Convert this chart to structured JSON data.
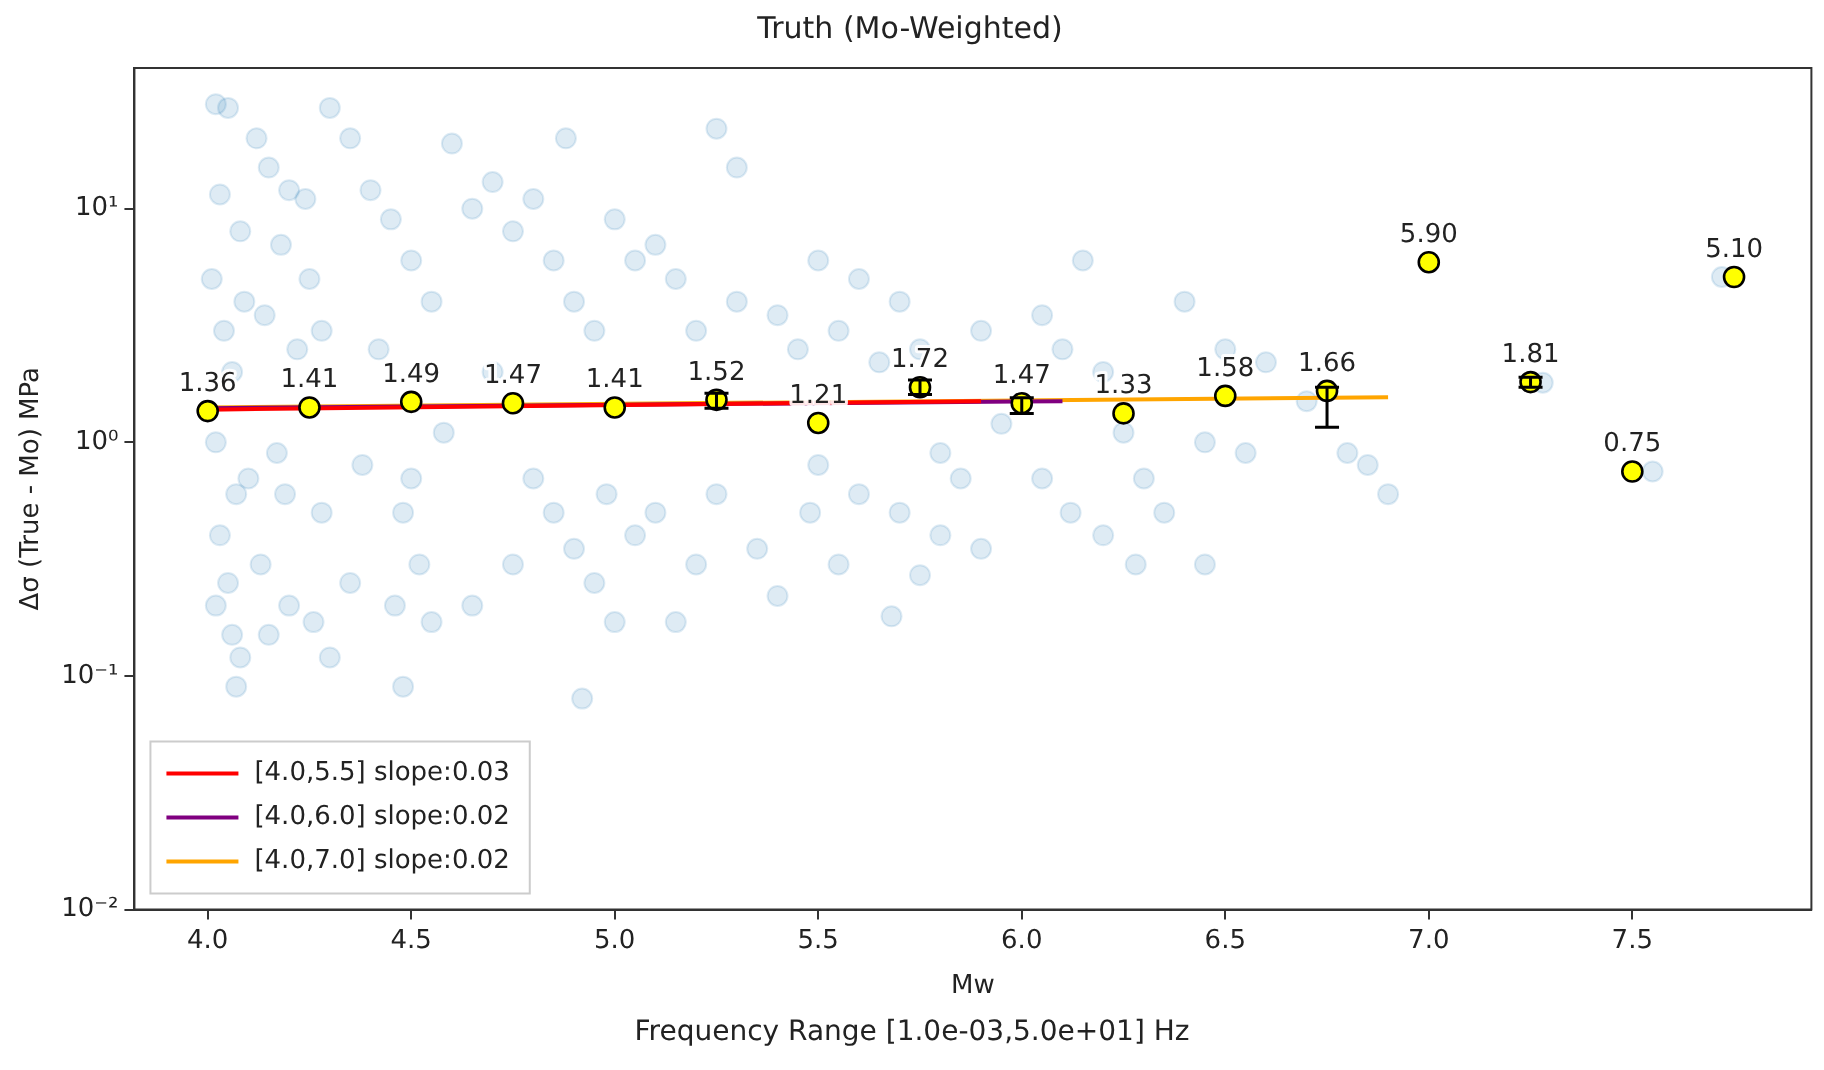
{
  "chart_data": {
    "type": "scatter",
    "title": "Truth (Mo-Weighted)",
    "xlabel": "Mw",
    "ylabel": "Δσ (True - Mo) MPa",
    "annotations": [
      "Frequency Range [1.0e-03,5.0e+01] Hz"
    ],
    "log": "y",
    "xlim": [
      3.82,
      7.94
    ],
    "ylim": [
      0.01,
      40
    ],
    "xticks": [
      {
        "value": 4,
        "label": "4.0"
      },
      {
        "value": 4.5,
        "label": "4.5"
      },
      {
        "value": 5,
        "label": "5.0"
      },
      {
        "value": 5.5,
        "label": "5.5"
      },
      {
        "value": 6,
        "label": "6.0"
      },
      {
        "value": 6.5,
        "label": "6.5"
      },
      {
        "value": 7,
        "label": "7.0"
      },
      {
        "value": 7.5,
        "label": "7.5"
      }
    ],
    "yticks": [
      {
        "value": 0.01,
        "label": "10⁻²"
      },
      {
        "value": 0.1,
        "label": "10⁻¹"
      },
      {
        "value": 1,
        "label": "10⁰"
      },
      {
        "value": 10,
        "label": "10¹"
      }
    ],
    "legend": "bottom left",
    "grid": false,
    "series": [
      {
        "type": "scatter",
        "color": "#1f77b4",
        "marker": "circle",
        "x": [
          4.02,
          4.05,
          4.03,
          4.08,
          4.01,
          4.04,
          4.06,
          4.02,
          4.07,
          4.03,
          4.05,
          4.02,
          4.06,
          4.08,
          4.07,
          4.1,
          4.09,
          4.12,
          4.15,
          4.2,
          4.18,
          4.25,
          4.14,
          4.22,
          4.17,
          4.28,
          4.13,
          4.2,
          4.26,
          4.15,
          4.3,
          4.24,
          4.3,
          4.28,
          4.19,
          4.35,
          4.4,
          4.45,
          4.5,
          4.55,
          4.42,
          4.38,
          4.48,
          4.52,
          4.46,
          4.55,
          4.48,
          4.6,
          4.58,
          4.35,
          4.5,
          4.65,
          4.7,
          4.75,
          4.8,
          4.85,
          4.9,
          4.95,
          4.7,
          4.8,
          4.85,
          4.75,
          4.9,
          4.95,
          4.92,
          4.88,
          5.0,
          4.65,
          4.98,
          5.05,
          5.1,
          5.15,
          5.2,
          5.3,
          5.4,
          5.45,
          5.05,
          5.1,
          5.2,
          5.25,
          5.35,
          5.4,
          5.15,
          5.0,
          5.25,
          5.3,
          5.5,
          5.48,
          5.5,
          5.55,
          5.6,
          5.65,
          5.7,
          5.75,
          5.8,
          5.85,
          5.9,
          5.95,
          5.6,
          5.7,
          5.8,
          5.9,
          5.55,
          5.75,
          5.68,
          6.05,
          6.1,
          6.15,
          6.2,
          6.25,
          6.3,
          6.35,
          6.4,
          6.45,
          6.5,
          6.05,
          6.12,
          6.2,
          6.28,
          6.45,
          6.55,
          6.6,
          6.7,
          6.8,
          6.85,
          6.9,
          7.28,
          7.55,
          7.72
        ],
        "values": [
          28,
          27,
          11.5,
          8,
          5,
          3,
          2,
          1.0,
          0.6,
          0.4,
          0.25,
          0.2,
          0.15,
          0.12,
          0.09,
          0.7,
          4,
          20,
          15,
          12,
          7,
          5,
          3.5,
          2.5,
          0.9,
          0.5,
          0.3,
          0.2,
          0.17,
          0.15,
          0.12,
          11,
          27,
          3,
          0.6,
          20,
          12,
          9,
          6,
          4,
          2.5,
          0.8,
          0.5,
          0.3,
          0.2,
          0.17,
          0.09,
          19,
          1.1,
          0.25,
          0.7,
          10,
          13,
          8,
          11,
          6,
          4,
          3,
          2,
          0.7,
          0.5,
          0.3,
          0.35,
          0.25,
          0.08,
          20,
          9,
          0.2,
          0.6,
          6,
          7,
          5,
          3,
          4,
          3.5,
          2.5,
          0.4,
          0.5,
          0.3,
          0.6,
          0.35,
          0.22,
          0.17,
          0.17,
          22,
          15,
          0.8,
          0.5,
          6,
          3,
          5,
          2.2,
          4,
          2.5,
          0.9,
          0.7,
          3,
          1.2,
          0.6,
          0.5,
          0.4,
          0.35,
          0.3,
          0.27,
          0.18,
          3.5,
          2.5,
          6,
          2,
          1.1,
          0.7,
          0.5,
          4,
          1,
          2.5,
          0.7,
          0.5,
          0.4,
          0.3,
          0.3,
          0.9,
          2.2,
          1.5,
          0.9,
          0.8,
          0.6,
          1.8,
          0.75,
          5.1
        ]
      },
      {
        "type": "line",
        "name": "[4.0,5.5] slope:0.03",
        "color": "#ff0000",
        "marker": "none",
        "x": [
          4.0,
          5.9
        ],
        "values": [
          1.38,
          1.5
        ]
      },
      {
        "type": "line",
        "name": "[4.0,6.0] slope:0.02",
        "color": "#800080",
        "marker": "none",
        "x": [
          4.0,
          6.1
        ],
        "values": [
          1.4,
          1.5
        ]
      },
      {
        "type": "line",
        "name": "[4.0,7.0] slope:0.02",
        "color": "#ffa500",
        "marker": "none",
        "x": [
          4.0,
          6.9
        ],
        "values": [
          1.41,
          1.56
        ]
      },
      {
        "type": "scatter",
        "color": "#ffff00",
        "marker": "circle",
        "x": [
          4.0,
          4.25,
          4.5,
          4.75,
          5.0,
          5.25,
          5.5,
          5.75,
          6.0,
          6.25,
          6.5,
          6.75,
          7.0,
          7.25,
          7.5,
          7.75
        ],
        "values": [
          1.36,
          1.41,
          1.49,
          1.47,
          1.41,
          1.52,
          1.21,
          1.72,
          1.47,
          1.33,
          1.58,
          1.66,
          5.9,
          1.81,
          0.75,
          5.1
        ],
        "value_labels": [
          "1.36",
          "1.41",
          "1.49",
          "1.47",
          "1.41",
          "1.52",
          "1.21",
          "1.72",
          "1.47",
          "1.33",
          "1.58",
          "1.66",
          "5.90",
          "1.81",
          "0.75",
          "5.10"
        ],
        "errors": [
          null,
          null,
          null,
          null,
          null,
          [
            1.4,
            1.62
          ],
          null,
          [
            1.6,
            1.85
          ],
          [
            1.33,
            1.55
          ],
          null,
          null,
          [
            1.16,
            1.72
          ],
          null,
          [
            1.72,
            1.9
          ],
          null,
          null
        ]
      }
    ]
  }
}
